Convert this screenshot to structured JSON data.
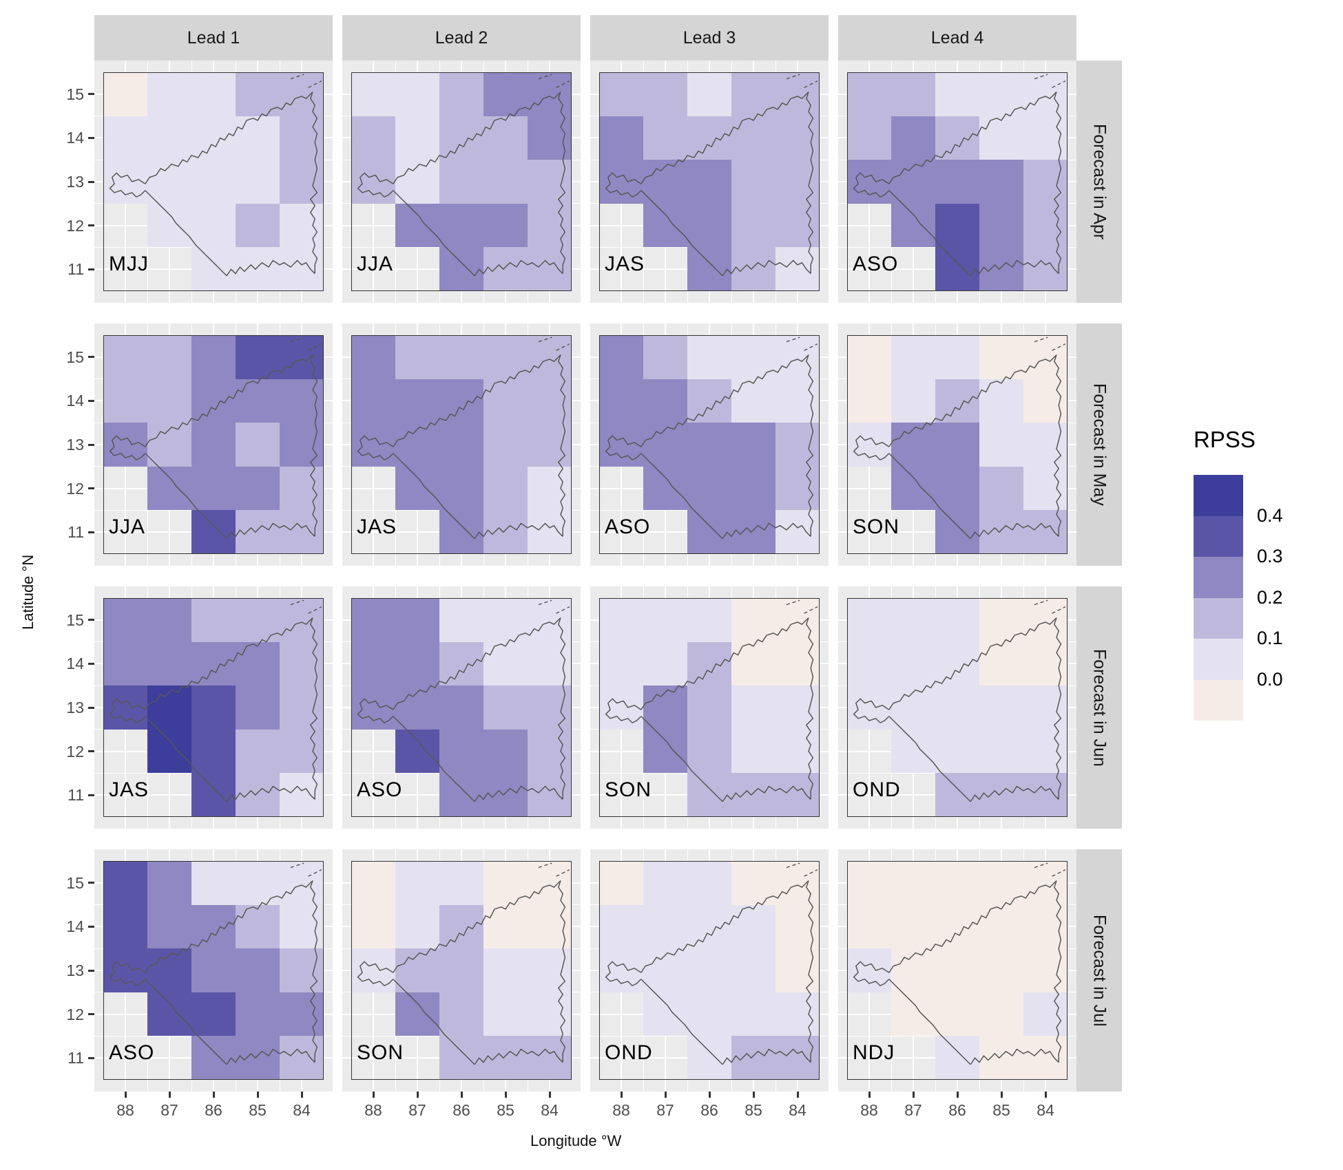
{
  "axes": {
    "x": {
      "title": "Longitude °W",
      "ticks": [
        "88",
        "87",
        "86",
        "85",
        "84"
      ]
    },
    "y": {
      "title": "Latitude °N",
      "ticks": [
        "15",
        "14",
        "13",
        "12",
        "11"
      ]
    }
  },
  "facets": {
    "columns": [
      "Lead 1",
      "Lead 2",
      "Lead 3",
      "Lead 4"
    ],
    "rows": [
      "Forecast in Apr",
      "Forecast in May",
      "Forecast in Jun",
      "Forecast in Jul"
    ]
  },
  "legend": {
    "title": "RPSS",
    "tick_labels_top_to_bottom": [
      "0.4",
      "0.3",
      "0.2",
      "0.1",
      "0.0"
    ],
    "bin_colors_top_to_bottom": [
      "#3d3e9b",
      "#5b55a8",
      "#8f88c2",
      "#beb9dc",
      "#e4e2f0",
      "#f6ece7"
    ]
  },
  "colors": {
    "panel_background": "#ebebeb",
    "strip_background": "#d5d5d5",
    "gridline": "#ffffff",
    "country_outline": "#575757",
    "raster_border": "#333333",
    "bins": {
      "-1": "#f6ece7",
      "0": "#e4e2f0",
      "1": "#beb9dc",
      "2": "#8f88c2",
      "3": "#5b55a8",
      "4": "#3d3e9b"
    }
  },
  "chart_data": {
    "type": "heatmap",
    "title": "",
    "xlabel": "Longitude °W",
    "ylabel": "Latitude °N",
    "legend_title": "RPSS",
    "x_lon_w": [
      88,
      87,
      86,
      85,
      84
    ],
    "y_lat_n": [
      15,
      14,
      13,
      12,
      11
    ],
    "bin_meaning": {
      "-1": "< 0.0",
      "0": "0.0–0.1",
      "1": "0.1–0.2",
      "2": "0.2–0.3",
      "3": "0.3–0.4",
      "4": "> 0.4"
    },
    "note_null": "null = no data (gray panel background)",
    "panels": [
      {
        "row": "Forecast in Apr",
        "col": "Lead 1",
        "season": "MJJ",
        "grid": [
          [
            -1,
            0,
            0,
            1,
            1
          ],
          [
            0,
            0,
            0,
            0,
            1
          ],
          [
            0,
            0,
            0,
            0,
            1
          ],
          [
            null,
            0,
            0,
            1,
            0
          ],
          [
            null,
            null,
            0,
            0,
            0
          ]
        ]
      },
      {
        "row": "Forecast in Apr",
        "col": "Lead 2",
        "season": "JJA",
        "grid": [
          [
            0,
            0,
            1,
            2,
            2
          ],
          [
            1,
            0,
            1,
            1,
            2
          ],
          [
            1,
            0,
            1,
            1,
            1
          ],
          [
            null,
            2,
            2,
            2,
            1
          ],
          [
            null,
            null,
            2,
            1,
            1
          ]
        ]
      },
      {
        "row": "Forecast in Apr",
        "col": "Lead 3",
        "season": "JAS",
        "grid": [
          [
            1,
            1,
            0,
            1,
            1
          ],
          [
            2,
            1,
            1,
            1,
            1
          ],
          [
            2,
            2,
            2,
            1,
            1
          ],
          [
            null,
            2,
            2,
            1,
            1
          ],
          [
            null,
            null,
            2,
            1,
            0
          ]
        ]
      },
      {
        "row": "Forecast in Apr",
        "col": "Lead 4",
        "season": "ASO",
        "grid": [
          [
            1,
            1,
            0,
            0,
            0
          ],
          [
            1,
            2,
            1,
            0,
            0
          ],
          [
            2,
            2,
            2,
            2,
            1
          ],
          [
            null,
            2,
            3,
            2,
            1
          ],
          [
            null,
            null,
            3,
            2,
            1
          ]
        ]
      },
      {
        "row": "Forecast in May",
        "col": "Lead 1",
        "season": "JJA",
        "grid": [
          [
            1,
            1,
            2,
            3,
            3
          ],
          [
            1,
            1,
            2,
            2,
            2
          ],
          [
            2,
            1,
            2,
            1,
            2
          ],
          [
            null,
            2,
            2,
            2,
            1
          ],
          [
            null,
            null,
            3,
            1,
            1
          ]
        ]
      },
      {
        "row": "Forecast in May",
        "col": "Lead 2",
        "season": "JAS",
        "grid": [
          [
            2,
            1,
            1,
            1,
            1
          ],
          [
            2,
            2,
            2,
            1,
            1
          ],
          [
            2,
            2,
            2,
            1,
            1
          ],
          [
            null,
            2,
            2,
            1,
            0
          ],
          [
            null,
            null,
            2,
            1,
            0
          ]
        ]
      },
      {
        "row": "Forecast in May",
        "col": "Lead 3",
        "season": "ASO",
        "grid": [
          [
            2,
            1,
            0,
            0,
            0
          ],
          [
            2,
            2,
            1,
            0,
            0
          ],
          [
            2,
            2,
            2,
            2,
            1
          ],
          [
            null,
            2,
            2,
            2,
            1
          ],
          [
            null,
            null,
            2,
            2,
            0
          ]
        ]
      },
      {
        "row": "Forecast in May",
        "col": "Lead 4",
        "season": "SON",
        "grid": [
          [
            -1,
            0,
            0,
            -1,
            -1
          ],
          [
            -1,
            0,
            1,
            0,
            -1
          ],
          [
            0,
            2,
            2,
            0,
            0
          ],
          [
            null,
            2,
            2,
            1,
            0
          ],
          [
            null,
            null,
            2,
            1,
            1
          ]
        ]
      },
      {
        "row": "Forecast in Jun",
        "col": "Lead 1",
        "season": "JAS",
        "grid": [
          [
            2,
            2,
            1,
            1,
            1
          ],
          [
            2,
            2,
            2,
            2,
            1
          ],
          [
            3,
            4,
            3,
            2,
            1
          ],
          [
            null,
            4,
            3,
            1,
            1
          ],
          [
            null,
            null,
            3,
            1,
            0
          ]
        ]
      },
      {
        "row": "Forecast in Jun",
        "col": "Lead 2",
        "season": "ASO",
        "grid": [
          [
            2,
            2,
            0,
            0,
            0
          ],
          [
            2,
            2,
            1,
            0,
            0
          ],
          [
            2,
            2,
            2,
            1,
            1
          ],
          [
            null,
            3,
            2,
            2,
            1
          ],
          [
            null,
            null,
            2,
            2,
            1
          ]
        ]
      },
      {
        "row": "Forecast in Jun",
        "col": "Lead 3",
        "season": "SON",
        "grid": [
          [
            0,
            0,
            0,
            -1,
            -1
          ],
          [
            0,
            0,
            1,
            -1,
            -1
          ],
          [
            0,
            2,
            1,
            0,
            0
          ],
          [
            null,
            2,
            1,
            0,
            0
          ],
          [
            null,
            null,
            1,
            1,
            1
          ]
        ]
      },
      {
        "row": "Forecast in Jun",
        "col": "Lead 4",
        "season": "OND",
        "grid": [
          [
            0,
            0,
            0,
            -1,
            -1
          ],
          [
            0,
            0,
            0,
            -1,
            -1
          ],
          [
            0,
            0,
            0,
            0,
            0
          ],
          [
            null,
            0,
            0,
            0,
            0
          ],
          [
            null,
            null,
            1,
            1,
            1
          ]
        ]
      },
      {
        "row": "Forecast in Jul",
        "col": "Lead 1",
        "season": "ASO",
        "grid": [
          [
            3,
            2,
            0,
            0,
            0
          ],
          [
            3,
            2,
            2,
            1,
            0
          ],
          [
            3,
            3,
            2,
            2,
            1
          ],
          [
            null,
            3,
            3,
            2,
            2
          ],
          [
            null,
            null,
            2,
            2,
            1
          ]
        ]
      },
      {
        "row": "Forecast in Jul",
        "col": "Lead 2",
        "season": "SON",
        "grid": [
          [
            -1,
            0,
            0,
            -1,
            -1
          ],
          [
            -1,
            0,
            1,
            -1,
            -1
          ],
          [
            0,
            1,
            1,
            0,
            0
          ],
          [
            null,
            2,
            1,
            0,
            0
          ],
          [
            null,
            null,
            1,
            1,
            1
          ]
        ]
      },
      {
        "row": "Forecast in Jul",
        "col": "Lead 3",
        "season": "OND",
        "grid": [
          [
            -1,
            0,
            0,
            -1,
            -1
          ],
          [
            0,
            0,
            0,
            0,
            -1
          ],
          [
            0,
            0,
            0,
            0,
            -1
          ],
          [
            null,
            0,
            0,
            0,
            0
          ],
          [
            null,
            null,
            0,
            1,
            1
          ]
        ]
      },
      {
        "row": "Forecast in Jul",
        "col": "Lead 4",
        "season": "NDJ",
        "grid": [
          [
            -1,
            -1,
            -1,
            -1,
            -1
          ],
          [
            -1,
            -1,
            -1,
            -1,
            -1
          ],
          [
            0,
            -1,
            -1,
            -1,
            -1
          ],
          [
            null,
            -1,
            -1,
            -1,
            0
          ],
          [
            null,
            null,
            0,
            -1,
            -1
          ]
        ]
      }
    ]
  }
}
